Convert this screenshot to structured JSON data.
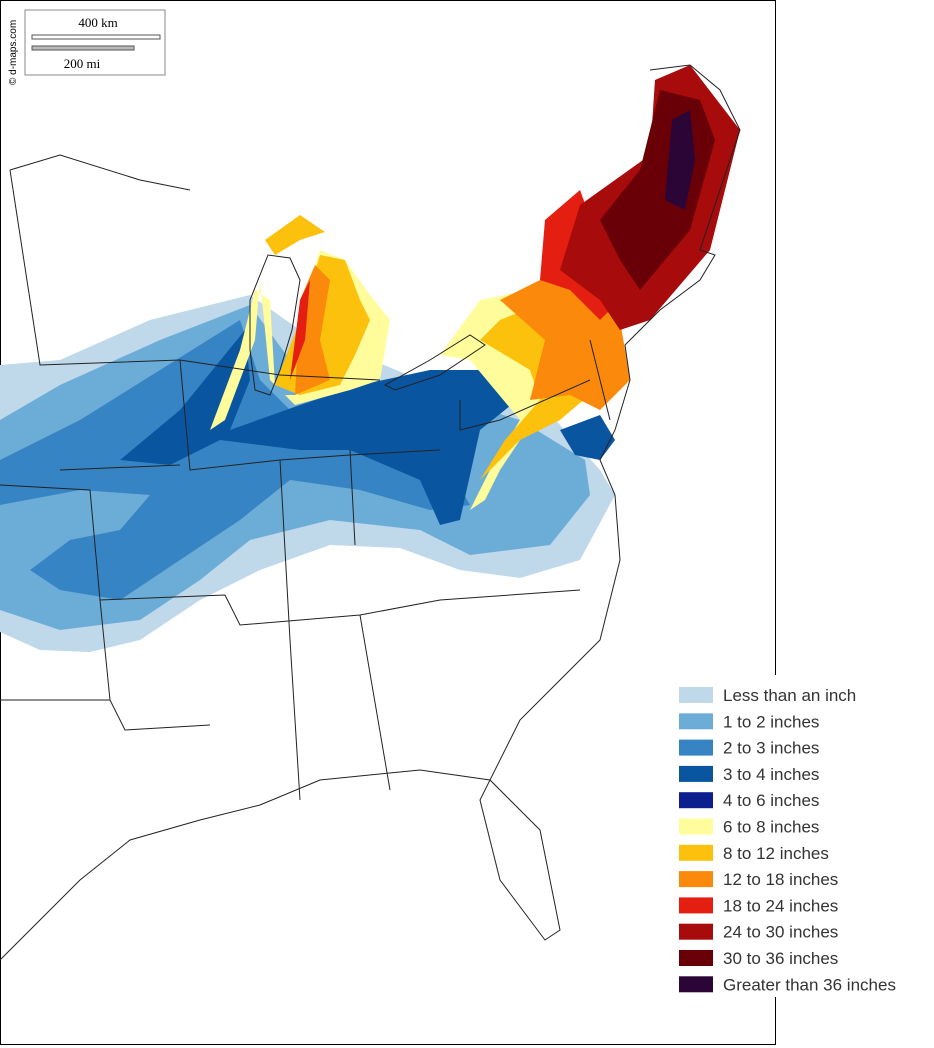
{
  "map": {
    "credit": "© d-maps.com",
    "scale": {
      "km": "400 km",
      "mi": "200 mi"
    },
    "legend": [
      {
        "label": "Less than an inch",
        "color": "#bfd8ea"
      },
      {
        "label": "1 to 2 inches",
        "color": "#6cadd8"
      },
      {
        "label": "2 to 3 inches",
        "color": "#3784c4"
      },
      {
        "label": "3 to 4 inches",
        "color": "#0a55a0"
      },
      {
        "label": "4 to 6 inches",
        "color": "#0c1f8f"
      },
      {
        "label": "6 to 8 inches",
        "color": "#fffc9c"
      },
      {
        "label": "8 to 12 inches",
        "color": "#fcc10c"
      },
      {
        "label": "12 to 18 inches",
        "color": "#fb8a0c"
      },
      {
        "label": "18 to 24 inches",
        "color": "#e41e10"
      },
      {
        "label": "24 to 30 inches",
        "color": "#a80b0b"
      },
      {
        "label": "30 to 36 inches",
        "color": "#690008"
      },
      {
        "label": "Greater than 36 inches",
        "color": "#2a0535"
      }
    ]
  }
}
